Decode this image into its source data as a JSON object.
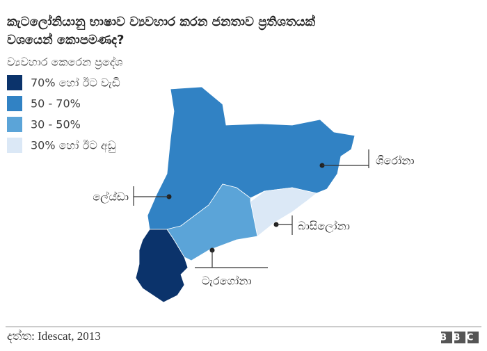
{
  "header": {
    "title_lines": [
      "කැටලෝනියානු භාෂාව ව්‍යවහාර කරන ජනතාව ප්‍රතිශතයක්",
      "වශයෙන් කොපමණද?"
    ]
  },
  "legend": {
    "title": "ව්‍යවහාර කෙරෙන ප්‍රදේශ",
    "items": [
      {
        "label": "70% හෝ ඊට වැඩි",
        "color": "#0b336b"
      },
      {
        "label": "50 - 70%",
        "color": "#3182c4"
      },
      {
        "label": "30 - 50%",
        "color": "#5ba4d8"
      },
      {
        "label": "30% හෝ ඊට අඩු",
        "color": "#dbe8f6"
      }
    ]
  },
  "regions": [
    {
      "label": "ශිරෝනා"
    },
    {
      "label": "ලේය්ඩා"
    },
    {
      "label": "බාසිලෝනා"
    },
    {
      "label": "ටැරගෝනා"
    }
  ],
  "footer": {
    "source": "දත්ත: Idescat, 2013",
    "logo": "BBC"
  }
}
